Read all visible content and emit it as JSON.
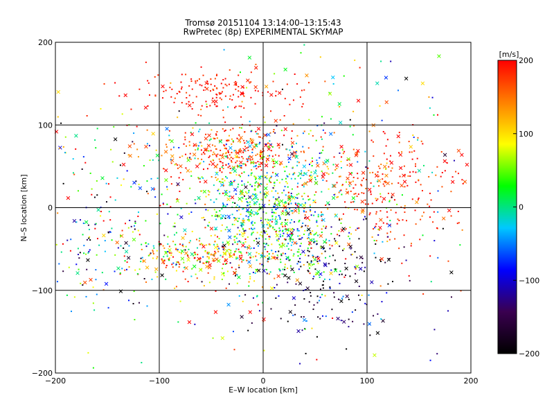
{
  "chart_data": {
    "type": "scatter",
    "title": "Tromsø 20151104 13:14:00–13:15:43",
    "subtitle": "RwPretec (8p) EXPERIMENTAL SKYMAP",
    "xlabel": "E–W location [km]",
    "ylabel": "N–S location [km]",
    "xlim": [
      -200,
      200
    ],
    "ylim": [
      -200,
      200
    ],
    "xticks": [
      -200,
      -100,
      0,
      100,
      200
    ],
    "yticks": [
      -200,
      -100,
      0,
      100,
      200
    ],
    "grid": true,
    "colorbar": {
      "label": "[m/s]",
      "range": [
        -200,
        200
      ],
      "ticks": [
        200,
        100,
        0,
        -100,
        -200
      ],
      "colors": [
        "#000000",
        "#3a0050",
        "#0000ff",
        "#00c8ff",
        "#00ff00",
        "#ffff00",
        "#ff8000",
        "#ff0000"
      ]
    },
    "clusters": [
      {
        "x": -40,
        "y": 140,
        "sx": 40,
        "sy": 15,
        "n": 160,
        "v": 190,
        "sv": 15
      },
      {
        "x": -30,
        "y": 65,
        "sx": 30,
        "sy": 15,
        "n": 260,
        "v": 175,
        "sv": 30
      },
      {
        "x": 0,
        "y": 10,
        "sx": 35,
        "sy": 35,
        "n": 520,
        "v": 20,
        "sv": 60
      },
      {
        "x": 120,
        "y": 20,
        "sx": 45,
        "sy": 35,
        "n": 260,
        "v": 180,
        "sv": 25
      },
      {
        "x": -60,
        "y": -60,
        "sx": 35,
        "sy": 15,
        "n": 260,
        "v": 120,
        "sv": 80
      },
      {
        "x": 60,
        "y": -90,
        "sx": 40,
        "sy": 40,
        "n": 200,
        "v": -160,
        "sv": 60
      },
      {
        "x": -150,
        "y": -50,
        "sx": 40,
        "sy": 35,
        "n": 160,
        "v": -40,
        "sv": 130
      },
      {
        "x": -120,
        "y": 40,
        "sx": 60,
        "sy": 45,
        "n": 150,
        "v": 60,
        "sv": 140
      },
      {
        "x": 20,
        "y": -40,
        "sx": 30,
        "sy": 25,
        "n": 250,
        "v": 20,
        "sv": 90
      },
      {
        "x": 60,
        "y": 60,
        "sx": 60,
        "sy": 50,
        "n": 150,
        "v": 60,
        "sv": 130
      },
      {
        "x": 0,
        "y": 0,
        "sx": 120,
        "sy": 110,
        "n": 240,
        "v": 40,
        "sv": 150
      }
    ]
  }
}
